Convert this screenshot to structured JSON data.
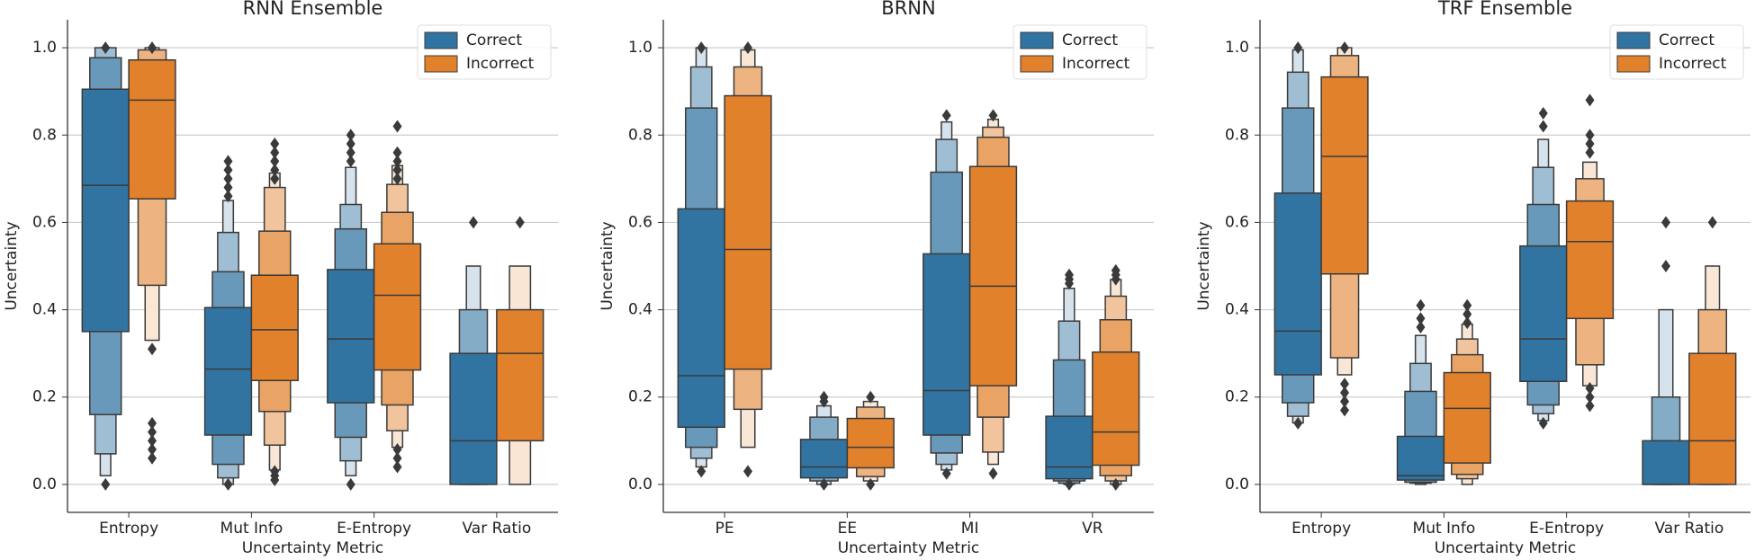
{
  "chart_data": [
    {
      "type": "boxen",
      "title": "RNN Ensemble",
      "x_label": "Uncertainty Metric",
      "y_label": "Uncertainty",
      "categories": [
        "Entropy",
        "Mut Info",
        "E-Entropy",
        "Var Ratio"
      ],
      "ylim": [
        -0.064,
        1.064
      ],
      "yticks": [
        {
          "value": 0,
          "label": "0.0"
        },
        0.2,
        0.4,
        0.6,
        0.8,
        {
          "value": 1,
          "label": "1.0"
        }
      ],
      "grid": true,
      "legend": "upper right",
      "series": [
        {
          "name": "Correct",
          "color": "#3274a1",
          "medians": [
            0.685,
            0.264,
            0.333,
            0.1
          ],
          "levels": [
            [
              [
                0.35,
                0.905
              ],
              [
                0.16,
                0.977
              ],
              [
                0.07,
                1.0
              ],
              [
                0.02,
                1.0
              ]
            ],
            [
              [
                0.113,
                0.405
              ],
              [
                0.046,
                0.487
              ],
              [
                0.015,
                0.577
              ],
              [
                0.0,
                0.65
              ]
            ],
            [
              [
                0.187,
                0.492
              ],
              [
                0.108,
                0.585
              ],
              [
                0.054,
                0.641
              ],
              [
                0.02,
                0.726
              ]
            ],
            [
              [
                0.0,
                0.3
              ],
              [
                0.0,
                0.4
              ],
              [
                0.0,
                0.5
              ]
            ]
          ],
          "outliers": [
            [
              0.0,
              1.0
            ],
            [
              0.74,
              0.72,
              0.7,
              0.68,
              0.66,
              0.0
            ],
            [
              0.8,
              0.78,
              0.76,
              0.74,
              0.0
            ],
            [
              0.6
            ]
          ]
        },
        {
          "name": "Incorrect",
          "color": "#e1812c",
          "medians": [
            0.88,
            0.354,
            0.433,
            0.3
          ],
          "levels": [
            [
              [
                0.654,
                0.972
              ],
              [
                0.456,
                0.995
              ],
              [
                0.33,
                1.0
              ]
            ],
            [
              [
                0.238,
                0.479
              ],
              [
                0.167,
                0.58
              ],
              [
                0.09,
                0.68
              ],
              [
                0.033,
                0.713
              ]
            ],
            [
              [
                0.262,
                0.551
              ],
              [
                0.182,
                0.623
              ],
              [
                0.123,
                0.687
              ],
              [
                0.085,
                0.73
              ]
            ],
            [
              [
                0.1,
                0.4
              ],
              [
                0.0,
                0.5
              ]
            ]
          ],
          "outliers": [
            [
              1.0,
              0.31,
              0.14,
              0.12,
              0.1,
              0.08,
              0.06
            ],
            [
              0.78,
              0.76,
              0.74,
              0.72,
              0.7,
              0.03,
              0.02,
              0.01
            ],
            [
              0.82,
              0.76,
              0.74,
              0.72,
              0.7,
              0.08,
              0.06,
              0.04
            ],
            [
              0.6
            ]
          ]
        }
      ]
    },
    {
      "type": "boxen",
      "title": "BRNN",
      "x_label": "Uncertainty Metric",
      "y_label": "Uncertainty",
      "categories": [
        "PE",
        "EE",
        "MI",
        "VR"
      ],
      "ylim": [
        -0.064,
        1.064
      ],
      "yticks": [
        {
          "value": 0,
          "label": "0.0"
        },
        0.2,
        0.4,
        0.6,
        0.8,
        {
          "value": 1,
          "label": "1.0"
        }
      ],
      "grid": true,
      "legend": "upper right",
      "series": [
        {
          "name": "Correct",
          "color": "#3274a1",
          "medians": [
            0.249,
            0.04,
            0.215,
            0.04
          ],
          "levels": [
            [
              [
                0.131,
                0.631
              ],
              [
                0.085,
                0.862
              ],
              [
                0.06,
                0.956
              ],
              [
                0.04,
                1.0
              ]
            ],
            [
              [
                0.015,
                0.103
              ],
              [
                0.008,
                0.154
              ],
              [
                0.0,
                0.18
              ]
            ],
            [
              [
                0.113,
                0.528
              ],
              [
                0.072,
                0.715
              ],
              [
                0.046,
                0.79
              ],
              [
                0.033,
                0.83
              ]
            ],
            [
              [
                0.013,
                0.156
              ],
              [
                0.008,
                0.285
              ],
              [
                0.003,
                0.374
              ],
              [
                0.0,
                0.449
              ]
            ]
          ],
          "outliers": [
            [
              1.0,
              0.03
            ],
            [
              0.2,
              0.19,
              0.0
            ],
            [
              0.845,
              0.025
            ],
            [
              0.48,
              0.47,
              0.46,
              0.0
            ]
          ]
        },
        {
          "name": "Incorrect",
          "color": "#e1812c",
          "medians": [
            0.538,
            0.085,
            0.454,
            0.12
          ],
          "levels": [
            [
              [
                0.264,
                0.89
              ],
              [
                0.172,
                0.956
              ],
              [
                0.085,
                0.995
              ]
            ],
            [
              [
                0.038,
                0.151
              ],
              [
                0.018,
                0.177
              ],
              [
                0.008,
                0.19
              ]
            ],
            [
              [
                0.226,
                0.728
              ],
              [
                0.154,
                0.795
              ],
              [
                0.074,
                0.818
              ],
              [
                0.046,
                0.836
              ]
            ],
            [
              [
                0.044,
                0.303
              ],
              [
                0.02,
                0.377
              ],
              [
                0.008,
                0.431
              ],
              [
                0.0,
                0.469
              ]
            ]
          ],
          "outliers": [
            [
              1.0,
              0.03
            ],
            [
              0.2,
              0.0
            ],
            [
              0.845,
              0.025
            ],
            [
              0.49,
              0.48,
              0.47,
              0.0
            ]
          ]
        }
      ]
    },
    {
      "type": "boxen",
      "title": "TRF Ensemble",
      "x_label": "Uncertainty Metric",
      "y_label": "Uncertainty",
      "categories": [
        "Entropy",
        "Mut Info",
        "E-Entropy",
        "Var Ratio"
      ],
      "ylim": [
        -0.064,
        1.064
      ],
      "yticks": [
        {
          "value": 0,
          "label": "0.0"
        },
        0.2,
        0.4,
        0.6,
        0.8,
        {
          "value": 1,
          "label": "1.0"
        }
      ],
      "grid": true,
      "legend": "upper right",
      "series": [
        {
          "name": "Correct",
          "color": "#3274a1",
          "medians": [
            0.351,
            0.02,
            0.333,
            0.0
          ],
          "levels": [
            [
              [
                0.251,
                0.667
              ],
              [
                0.187,
                0.862
              ],
              [
                0.156,
                0.944
              ],
              [
                0.141,
                0.995
              ]
            ],
            [
              [
                0.01,
                0.11
              ],
              [
                0.005,
                0.213
              ],
              [
                0.003,
                0.277
              ],
              [
                0.0,
                0.341
              ]
            ],
            [
              [
                0.236,
                0.546
              ],
              [
                0.182,
                0.641
              ],
              [
                0.162,
                0.726
              ],
              [
                0.146,
                0.79
              ]
            ],
            [
              [
                0.0,
                0.1
              ],
              [
                0.0,
                0.2
              ],
              [
                0.0,
                0.4
              ]
            ]
          ],
          "outliers": [
            [
              1.0,
              0.14
            ],
            [
              0.41,
              0.38,
              0.36
            ],
            [
              0.85,
              0.82,
              0.14
            ],
            [
              0.6,
              0.5
            ]
          ]
        },
        {
          "name": "Incorrect",
          "color": "#e1812c",
          "medians": [
            0.751,
            0.174,
            0.556,
            0.1
          ],
          "levels": [
            [
              [
                0.482,
                0.933
              ],
              [
                0.29,
                0.982
              ],
              [
                0.251,
                1.0
              ]
            ],
            [
              [
                0.049,
                0.256
              ],
              [
                0.023,
                0.297
              ],
              [
                0.013,
                0.333
              ],
              [
                0.0,
                0.367
              ]
            ],
            [
              [
                0.38,
                0.649
              ],
              [
                0.274,
                0.7
              ],
              [
                0.226,
                0.738
              ]
            ],
            [
              [
                0.0,
                0.3
              ],
              [
                0.0,
                0.4
              ],
              [
                0.0,
                0.5
              ]
            ]
          ],
          "outliers": [
            [
              1.0,
              0.23,
              0.21,
              0.19,
              0.17
            ],
            [
              0.41,
              0.39,
              0.37
            ],
            [
              0.88,
              0.8,
              0.78,
              0.76,
              0.22,
              0.2,
              0.18
            ],
            [
              0.6
            ]
          ]
        }
      ]
    }
  ]
}
